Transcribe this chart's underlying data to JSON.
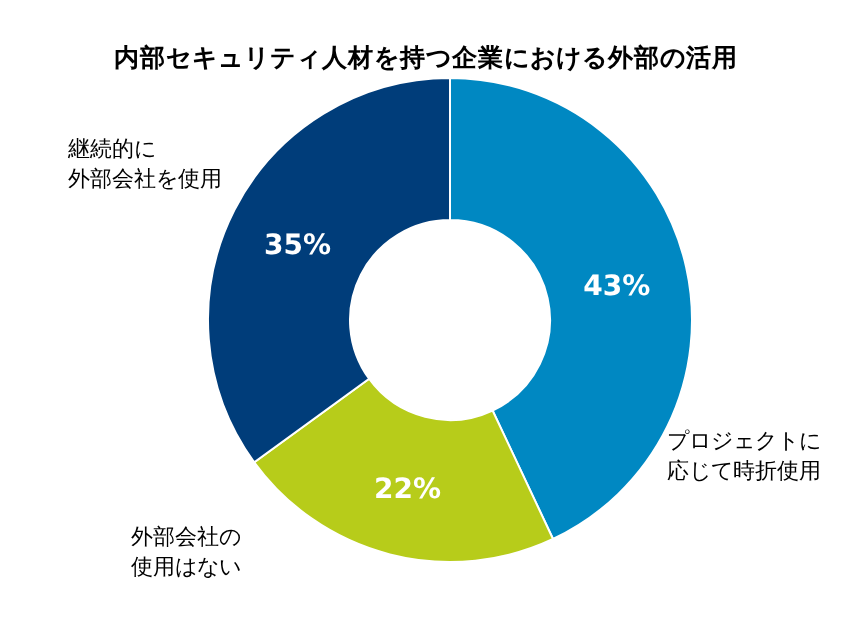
{
  "chart_data": {
    "type": "donut",
    "title": "内部セキュリティ人材を持つ企業における外部の活用",
    "categories": [
      "プロジェクトに応じて時折使用",
      "外部会社の使用はない",
      "継続的に外部会社を使用"
    ],
    "values": [
      43,
      22,
      35
    ],
    "value_labels": [
      "43%",
      "22%",
      "35%"
    ],
    "colors": [
      "#0088c2",
      "#b7cc1a",
      "#003d7a"
    ]
  }
}
